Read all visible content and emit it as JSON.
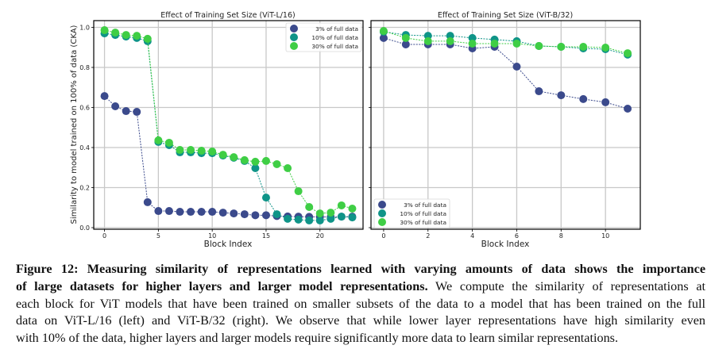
{
  "chart_data": [
    {
      "type": "line",
      "title": "Effect of Training Set Size (ViT-L/16)",
      "xlabel": "Block Index",
      "ylabel": "Similarity to model trained on 100% of data (CKA)",
      "xlim": [
        -1,
        24
      ],
      "ylim": [
        0.0,
        1.0
      ],
      "xticks": [
        0,
        5,
        10,
        15,
        20
      ],
      "yticks": [
        0.0,
        0.2,
        0.4,
        0.6,
        0.8,
        1.0
      ],
      "ytick_labels": [
        "0.0",
        "0.2",
        "0.4",
        "0.6",
        "0.8",
        "1.0"
      ],
      "xtick_labels": [
        "0",
        "5",
        "10",
        "15",
        "20"
      ],
      "grid": true,
      "legend_position": "top-right",
      "x": [
        0,
        1,
        2,
        3,
        4,
        5,
        6,
        7,
        8,
        9,
        10,
        11,
        12,
        13,
        14,
        15,
        16,
        17,
        18,
        19,
        20,
        21,
        22,
        23
      ],
      "series": [
        {
          "name": "3% of full data",
          "color": "#3b4a8c",
          "values": [
            0.657,
            0.606,
            0.582,
            0.578,
            0.127,
            0.083,
            0.083,
            0.079,
            0.079,
            0.079,
            0.079,
            0.075,
            0.071,
            0.067,
            0.062,
            0.062,
            0.058,
            0.056,
            0.055,
            0.054,
            0.054,
            0.053,
            0.055,
            0.055
          ]
        },
        {
          "name": "10% of full data",
          "color": "#0f9488",
          "values": [
            0.97,
            0.962,
            0.954,
            0.947,
            0.931,
            0.428,
            0.412,
            0.376,
            0.376,
            0.372,
            0.372,
            0.36,
            0.349,
            0.333,
            0.297,
            0.15,
            0.067,
            0.044,
            0.04,
            0.036,
            0.036,
            0.044,
            0.055,
            0.051
          ]
        },
        {
          "name": "30% of full data",
          "color": "#3fce45",
          "values": [
            0.986,
            0.974,
            0.962,
            0.958,
            0.943,
            0.436,
            0.424,
            0.388,
            0.388,
            0.384,
            0.38,
            0.364,
            0.352,
            0.337,
            0.329,
            0.333,
            0.317,
            0.297,
            0.182,
            0.103,
            0.071,
            0.075,
            0.111,
            0.095
          ]
        }
      ]
    },
    {
      "type": "line",
      "title": "Effect of Training Set Size (ViT-B/32)",
      "xlabel": "Block Index",
      "ylabel": "",
      "xlim": [
        -0.57,
        11.57
      ],
      "ylim": [
        0.0,
        1.0
      ],
      "xticks": [
        0,
        2,
        4,
        6,
        8,
        10
      ],
      "xtick_labels": [
        "0",
        "2",
        "4",
        "6",
        "8",
        "10"
      ],
      "yticks": [
        0.0,
        0.2,
        0.4,
        0.6,
        0.8,
        1.0
      ],
      "grid": true,
      "legend_position": "bottom-left",
      "x": [
        0,
        1,
        2,
        3,
        4,
        5,
        6,
        7,
        8,
        9,
        10,
        11
      ],
      "series": [
        {
          "name": "3% of full data",
          "color": "#3b4a8c",
          "values": [
            0.947,
            0.915,
            0.915,
            0.915,
            0.895,
            0.903,
            0.804,
            0.681,
            0.661,
            0.642,
            0.626,
            0.594
          ]
        },
        {
          "name": "10% of full data",
          "color": "#0f9488",
          "values": [
            0.978,
            0.962,
            0.958,
            0.958,
            0.947,
            0.939,
            0.931,
            0.907,
            0.903,
            0.895,
            0.891,
            0.864
          ]
        },
        {
          "name": "30% of full data",
          "color": "#3fce45",
          "values": [
            0.982,
            0.947,
            0.931,
            0.931,
            0.919,
            0.919,
            0.919,
            0.907,
            0.903,
            0.903,
            0.899,
            0.871
          ]
        }
      ]
    }
  ],
  "caption": {
    "label": "Figure 12:",
    "bold_text": "Measuring similarity of representations learned with varying amounts of data shows the importance of large datasets for higher layers and larger model representations.",
    "lines": [
      {
        "bold": "Figure 12: Measuring similarity of representations learned with varying amounts of data shows the importance",
        "normal": ""
      },
      {
        "bold": "of large datasets for higher layers and larger model representations.",
        "normal": " We compute the similarity of representations at"
      },
      {
        "bold": "",
        "normal": "each block for ViT models that have been trained on smaller subsets of the data to a model that has been trained on the full"
      },
      {
        "bold": "",
        "normal": "data on ViT-L/16 (left) and ViT-B/32 (right). We observe that while lower layer representations have high similarity even"
      },
      {
        "bold": "",
        "normal": "with  10% of the data, higher layers and larger models require significantly more data to learn similar representations."
      }
    ]
  }
}
